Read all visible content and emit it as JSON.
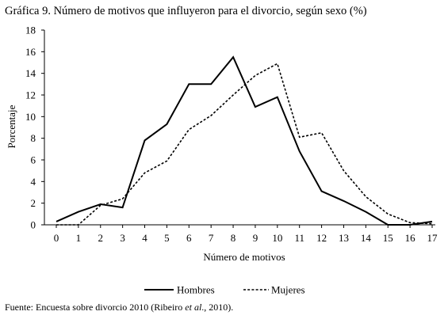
{
  "title": "Gráfica 9. Número de motivos que influyeron para el divorcio, según sexo (%)",
  "source": {
    "prefix": "Fuente: Encuesta sobre divorcio 2010 (Ribeiro ",
    "italic": "et al",
    "suffix": "., 2010)."
  },
  "chart_data": {
    "type": "line",
    "title": "Gráfica 9. Número de motivos que influyeron para el divorcio, según sexo (%)",
    "xlabel": "Número de motivos",
    "ylabel": "Porcentaje",
    "x": [
      0,
      1,
      2,
      3,
      4,
      5,
      6,
      7,
      8,
      9,
      10,
      11,
      12,
      13,
      14,
      15,
      16,
      17
    ],
    "xlim": [
      0,
      17
    ],
    "ylim": [
      0,
      18
    ],
    "yticks": [
      0,
      2,
      4,
      6,
      8,
      10,
      12,
      14,
      16,
      18
    ],
    "grid": false,
    "legend_position": "bottom",
    "series": [
      {
        "name": "Hombres",
        "style": "solid",
        "color": "#000000",
        "values": [
          0.3,
          1.2,
          1.9,
          1.6,
          7.8,
          9.3,
          13.0,
          13.0,
          15.5,
          10.9,
          11.8,
          6.8,
          3.1,
          2.2,
          1.2,
          0.0,
          0.0,
          0.3
        ]
      },
      {
        "name": "Mujeres",
        "style": "dashed",
        "color": "#000000",
        "values": [
          0.0,
          0.0,
          1.8,
          2.4,
          4.8,
          5.9,
          8.8,
          10.1,
          12.0,
          13.8,
          14.9,
          8.1,
          8.5,
          5.0,
          2.6,
          1.0,
          0.2,
          0.1
        ]
      }
    ]
  }
}
